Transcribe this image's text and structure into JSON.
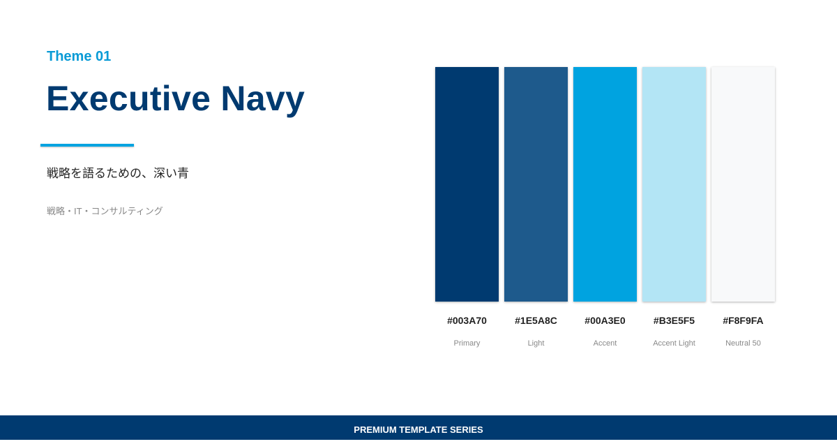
{
  "header": {
    "theme": "Theme 01",
    "title": "Executive Navy",
    "subtitle": "戦略を語るための、深い青",
    "tagline": "戦略・IT・コンサルティング"
  },
  "swatches": [
    {
      "hex": "#003A70",
      "name": "Primary"
    },
    {
      "hex": "#1E5A8C",
      "name": "Light"
    },
    {
      "hex": "#00A3E0",
      "name": "Accent"
    },
    {
      "hex": "#B3E5F5",
      "name": "Accent Light"
    },
    {
      "hex": "#F8F9FA",
      "name": "Neutral 50"
    }
  ],
  "footer": {
    "text": "PREMIUM TEMPLATE SERIES"
  }
}
